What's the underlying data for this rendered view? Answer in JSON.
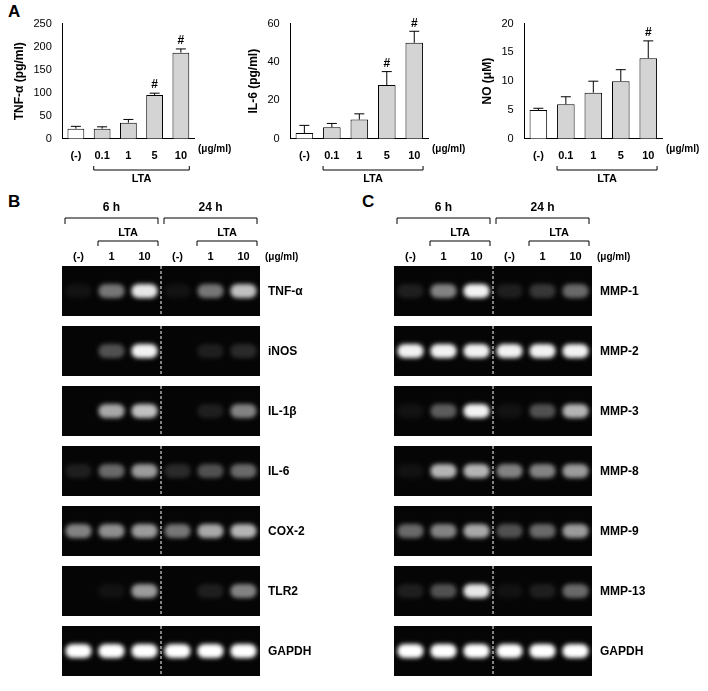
{
  "panel_labels": [
    "A",
    "B",
    "C"
  ],
  "chart_data": [
    {
      "type": "bar",
      "y_label": "TNF-α (pg/ml)",
      "categories": [
        "(-)",
        "0.1",
        "1",
        "5",
        "10"
      ],
      "values": [
        22,
        22,
        35,
        95,
        187
      ],
      "errors": [
        5,
        4,
        7,
        4,
        8
      ],
      "annotations": [
        null,
        null,
        null,
        "#",
        "#"
      ],
      "colors": [
        "#ffffff",
        "#d4d4d4",
        "#d4d4d4",
        "#d4d4d4",
        "#d4d4d4"
      ],
      "group_label": "LTA",
      "group_categories": [
        "0.1",
        "1",
        "5",
        "10"
      ],
      "unit_label": "(μg/ml)",
      "ylim": [
        0,
        250
      ],
      "yticks": [
        0,
        50,
        100,
        150,
        200,
        250
      ],
      "grid": false
    },
    {
      "type": "bar",
      "y_label": "IL-6 (pg/ml)",
      "categories": [
        "(-)",
        "0.1",
        "1",
        "5",
        "10"
      ],
      "values": [
        3,
        6,
        10,
        28,
        50
      ],
      "errors": [
        4,
        2,
        3,
        7,
        6
      ],
      "annotations": [
        null,
        null,
        null,
        "#",
        "#"
      ],
      "colors": [
        "#ffffff",
        "#d4d4d4",
        "#d4d4d4",
        "#d4d4d4",
        "#d4d4d4"
      ],
      "group_label": "LTA",
      "group_categories": [
        "0.1",
        "1",
        "5",
        "10"
      ],
      "unit_label": "(μg/ml)",
      "ylim": [
        0,
        60
      ],
      "yticks": [
        0,
        20,
        40,
        60
      ],
      "grid": false
    },
    {
      "type": "bar",
      "y_label": "NO (μM)",
      "categories": [
        "(-)",
        "0.1",
        "1",
        "5",
        "10"
      ],
      "values": [
        5,
        6,
        8,
        10,
        14
      ],
      "errors": [
        0.3,
        1.3,
        2,
        2,
        3
      ],
      "annotations": [
        null,
        null,
        null,
        null,
        "#"
      ],
      "colors": [
        "#ffffff",
        "#d4d4d4",
        "#d4d4d4",
        "#d4d4d4",
        "#d4d4d4"
      ],
      "group_label": "LTA",
      "group_categories": [
        "0.1",
        "1",
        "5",
        "10"
      ],
      "unit_label": "(μg/ml)",
      "ylim": [
        0,
        20
      ],
      "yticks": [
        0,
        5,
        10,
        15,
        20
      ],
      "grid": false
    }
  ],
  "gels": [
    {
      "time_labels": [
        "6 h",
        "24 h"
      ],
      "group_label": "LTA",
      "lane_labels": [
        "(-)",
        "1",
        "10",
        "(-)",
        "1",
        "10"
      ],
      "unit_label": "(μg/ml)",
      "rows": [
        {
          "label": "TNF-α",
          "intensity": [
            0.05,
            0.45,
            0.9,
            0.05,
            0.45,
            0.75
          ]
        },
        {
          "label": "iNOS",
          "intensity": [
            0.0,
            0.3,
            0.95,
            0.0,
            0.1,
            0.15
          ]
        },
        {
          "label": "IL-1β",
          "intensity": [
            0.0,
            0.65,
            0.75,
            0.0,
            0.1,
            0.5
          ]
        },
        {
          "label": "IL-6",
          "intensity": [
            0.1,
            0.4,
            0.6,
            0.15,
            0.3,
            0.4
          ]
        },
        {
          "label": "COX-2",
          "intensity": [
            0.5,
            0.55,
            0.6,
            0.45,
            0.65,
            0.7
          ]
        },
        {
          "label": "TLR2",
          "intensity": [
            0.0,
            0.05,
            0.6,
            0.0,
            0.1,
            0.5
          ]
        },
        {
          "label": "GAPDH",
          "intensity": [
            1,
            1,
            1,
            1,
            1,
            1
          ]
        }
      ]
    },
    {
      "time_labels": [
        "6 h",
        "24 h"
      ],
      "group_label": "LTA",
      "lane_labels": [
        "(-)",
        "1",
        "10",
        "(-)",
        "1",
        "10"
      ],
      "unit_label": "(μg/ml)",
      "rows": [
        {
          "label": "MMP-1",
          "intensity": [
            0.1,
            0.5,
            0.95,
            0.1,
            0.2,
            0.4
          ]
        },
        {
          "label": "MMP-2",
          "intensity": [
            0.95,
            0.95,
            0.95,
            0.95,
            0.95,
            0.95
          ]
        },
        {
          "label": "MMP-3",
          "intensity": [
            0.05,
            0.35,
            0.95,
            0.05,
            0.3,
            0.7
          ]
        },
        {
          "label": "MMP-8",
          "intensity": [
            0.05,
            0.7,
            0.7,
            0.5,
            0.5,
            0.6
          ]
        },
        {
          "label": "MMP-9",
          "intensity": [
            0.4,
            0.5,
            0.65,
            0.3,
            0.4,
            0.6
          ]
        },
        {
          "label": "MMP-13",
          "intensity": [
            0.1,
            0.3,
            0.9,
            0.05,
            0.1,
            0.4
          ]
        },
        {
          "label": "GAPDH",
          "intensity": [
            1,
            1,
            1,
            1,
            1,
            1
          ]
        }
      ]
    }
  ]
}
